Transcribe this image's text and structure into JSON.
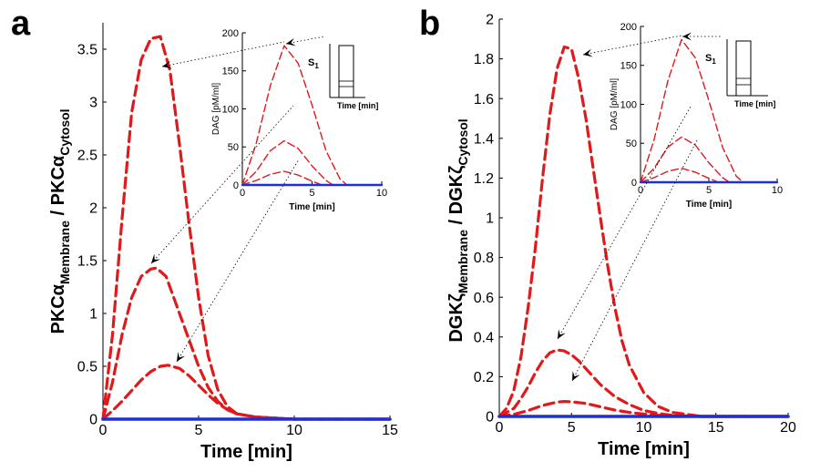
{
  "chart_data": [
    {
      "panel": "a",
      "type": "line",
      "xlabel": "Time [min]",
      "ylabel_parts": [
        "PKCα",
        "Membrane",
        " / PKCα",
        "Cytosol"
      ],
      "xlim": [
        0,
        15
      ],
      "ylim": [
        0,
        3.75
      ],
      "xticks": [
        0,
        5,
        10,
        15
      ],
      "yticks": [
        0,
        0.5,
        1,
        1.5,
        2,
        2.5,
        3,
        3.5
      ],
      "line_style": "dashed",
      "series": [
        {
          "color": "#e0191b",
          "x": [
            0,
            0.5,
            1,
            1.5,
            2,
            2.5,
            3,
            3.5,
            4,
            4.5,
            5,
            5.5,
            6,
            6.5,
            7,
            8,
            9,
            10,
            15
          ],
          "y": [
            0,
            0.8,
            1.9,
            2.9,
            3.4,
            3.6,
            3.62,
            3.3,
            2.6,
            1.85,
            1.15,
            0.6,
            0.28,
            0.12,
            0.05,
            0.02,
            0.01,
            0,
            0
          ]
        },
        {
          "color": "#e0191b",
          "x": [
            0,
            0.5,
            1,
            1.5,
            2,
            2.5,
            2.8,
            3.3,
            4,
            4.5,
            5,
            5.5,
            6,
            6.5,
            7,
            8,
            10,
            15
          ],
          "y": [
            0,
            0.35,
            0.8,
            1.15,
            1.35,
            1.42,
            1.43,
            1.35,
            1.0,
            0.75,
            0.5,
            0.3,
            0.17,
            0.09,
            0.05,
            0.02,
            0,
            0
          ]
        },
        {
          "color": "#e0191b",
          "x": [
            0,
            0.5,
            1,
            1.5,
            2,
            2.5,
            3,
            3.4,
            4,
            4.5,
            5,
            5.5,
            6,
            6.5,
            7,
            8,
            9,
            10,
            15
          ],
          "y": [
            0,
            0.08,
            0.17,
            0.27,
            0.37,
            0.45,
            0.5,
            0.51,
            0.48,
            0.41,
            0.32,
            0.23,
            0.15,
            0.09,
            0.05,
            0.02,
            0.01,
            0,
            0
          ]
        },
        {
          "color": "#1f2fd8",
          "x": [
            0,
            15
          ],
          "y": [
            0,
            0
          ],
          "solid": true
        }
      ],
      "inset": {
        "ylabel": "DAG [pM/ml]",
        "xlabel": "Time [min]",
        "xlim": [
          0,
          10
        ],
        "ylim": [
          0,
          200
        ],
        "xticks": [
          0,
          5,
          10
        ],
        "yticks": [
          0,
          50,
          100,
          150,
          200
        ],
        "series": [
          {
            "color": "#e0191b",
            "x": [
              0,
              1,
              2,
              3,
              4,
              5,
              6,
              7,
              7.5,
              10
            ],
            "y": [
              0,
              55,
              130,
              183,
              160,
              105,
              45,
              8,
              0,
              0
            ]
          },
          {
            "color": "#e0191b",
            "x": [
              0,
              1,
              2,
              3,
              4,
              5,
              6,
              6.5,
              10
            ],
            "y": [
              0,
              18,
              45,
              58,
              48,
              25,
              6,
              0,
              0
            ]
          },
          {
            "color": "#e0191b",
            "x": [
              0,
              1,
              2,
              3,
              4,
              5,
              5.7,
              10
            ],
            "y": [
              0,
              6,
              14,
              18,
              13,
              5,
              0,
              0
            ]
          },
          {
            "color": "#1f2fd8",
            "x": [
              0,
              10
            ],
            "y": [
              0,
              0
            ],
            "solid": true
          }
        ],
        "stimulus": {
          "label": "S",
          "subscript": "1",
          "axis_label": "Time [min]"
        }
      }
    },
    {
      "panel": "b",
      "type": "line",
      "xlabel": "Time [min]",
      "ylabel_parts": [
        "DGKζ",
        "Membrane",
        " / DGKζ",
        "Cytosol"
      ],
      "xlim": [
        0,
        20
      ],
      "ylim": [
        0,
        2
      ],
      "xticks": [
        0,
        5,
        10,
        15,
        20
      ],
      "yticks": [
        0,
        0.2,
        0.4,
        0.6,
        0.8,
        1,
        1.2,
        1.4,
        1.6,
        1.8,
        2
      ],
      "line_style": "dashed",
      "series": [
        {
          "color": "#e0191b",
          "x": [
            0,
            0.5,
            1,
            1.5,
            2,
            2.5,
            3,
            3.5,
            4,
            4.5,
            5,
            5.5,
            6,
            6.5,
            7,
            7.5,
            8,
            8.5,
            9,
            10,
            11,
            12,
            14,
            20
          ],
          "y": [
            0,
            0.04,
            0.13,
            0.3,
            0.55,
            0.85,
            1.2,
            1.52,
            1.75,
            1.86,
            1.85,
            1.7,
            1.5,
            1.25,
            1.0,
            0.76,
            0.55,
            0.38,
            0.26,
            0.12,
            0.05,
            0.02,
            0,
            0
          ]
        },
        {
          "color": "#e0191b",
          "x": [
            0,
            1,
            1.5,
            2,
            2.5,
            3,
            3.5,
            4,
            4.5,
            5,
            5.5,
            6,
            7,
            8,
            9,
            10,
            11,
            12,
            14,
            20
          ],
          "y": [
            0,
            0.04,
            0.09,
            0.15,
            0.22,
            0.28,
            0.32,
            0.335,
            0.33,
            0.31,
            0.28,
            0.24,
            0.16,
            0.1,
            0.06,
            0.03,
            0.015,
            0.005,
            0,
            0
          ]
        },
        {
          "color": "#e0191b",
          "x": [
            0,
            1,
            2,
            3,
            4,
            4.5,
            5,
            6,
            7,
            8,
            9,
            10,
            11,
            12,
            14,
            20
          ],
          "y": [
            0,
            0.01,
            0.03,
            0.055,
            0.072,
            0.075,
            0.074,
            0.065,
            0.048,
            0.032,
            0.02,
            0.012,
            0.006,
            0.003,
            0,
            0
          ]
        },
        {
          "color": "#1f2fd8",
          "x": [
            0,
            20
          ],
          "y": [
            0,
            0
          ],
          "solid": true
        }
      ],
      "inset": {
        "ylabel": "DAG [pM/ml]",
        "xlabel": "Time [min]",
        "xlim": [
          0,
          10
        ],
        "ylim": [
          0,
          200
        ],
        "xticks": [
          0,
          5,
          10
        ],
        "yticks": [
          0,
          50,
          100,
          150,
          200
        ],
        "series": [
          {
            "color": "#e0191b",
            "x": [
              0,
              1,
              2,
              3,
              4,
              5,
              6,
              7,
              7.5,
              10
            ],
            "y": [
              0,
              55,
              130,
              183,
              160,
              105,
              45,
              8,
              0,
              0
            ]
          },
          {
            "color": "#e0191b",
            "x": [
              0,
              1,
              2,
              3,
              4,
              5,
              6,
              6.5,
              10
            ],
            "y": [
              0,
              18,
              45,
              58,
              48,
              25,
              6,
              0,
              0
            ]
          },
          {
            "color": "#e0191b",
            "x": [
              0,
              1,
              2,
              3,
              4,
              5,
              5.7,
              10
            ],
            "y": [
              0,
              6,
              14,
              18,
              13,
              5,
              0,
              0
            ]
          },
          {
            "color": "#1f2fd8",
            "x": [
              0,
              10
            ],
            "y": [
              0,
              0
            ],
            "solid": true
          }
        ],
        "stimulus": {
          "label": "S",
          "subscript": "1",
          "axis_label": "Time [min]"
        }
      }
    }
  ]
}
